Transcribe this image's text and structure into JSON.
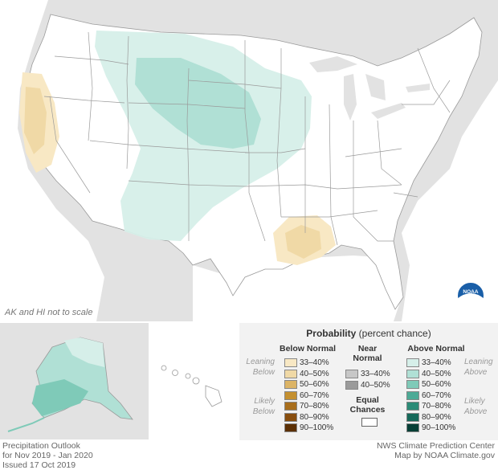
{
  "map": {
    "scale_note": "AK and HI not to scale",
    "logo_text": "NOAA"
  },
  "legend": {
    "title_bold": "Probability",
    "title_rest": " (percent chance)",
    "below_head": "Below Normal",
    "near_head_1": "Near",
    "near_head_2": "Normal",
    "above_head": "Above Normal",
    "leaning_left": [
      "Leaning",
      "Below"
    ],
    "likely_left": [
      "Likely",
      "Below"
    ],
    "leaning_right": [
      "Leaning",
      "Above"
    ],
    "likely_right": [
      "Likely",
      "Above"
    ],
    "equal_1": "Equal",
    "equal_2": "Chances",
    "below": [
      {
        "label": "33–40%",
        "color": "#f8e8c4"
      },
      {
        "label": "40–50%",
        "color": "#f0d9a6"
      },
      {
        "label": "50–60%",
        "color": "#dcb466"
      },
      {
        "label": "60–70%",
        "color": "#c49030"
      },
      {
        "label": "70–80%",
        "color": "#a86e1c"
      },
      {
        "label": "80–90%",
        "color": "#884e0f"
      },
      {
        "label": "90–100%",
        "color": "#5c3005"
      }
    ],
    "near": [
      {
        "label": "33–40%",
        "color": "#c7c7c7"
      },
      {
        "label": "40–50%",
        "color": "#9b9b9b"
      }
    ],
    "above": [
      {
        "label": "33–40%",
        "color": "#d6efe9"
      },
      {
        "label": "40–50%",
        "color": "#b0e0d5"
      },
      {
        "label": "50–60%",
        "color": "#7fcab8"
      },
      {
        "label": "60–70%",
        "color": "#4daa96"
      },
      {
        "label": "70–80%",
        "color": "#2b8b77"
      },
      {
        "label": "80–90%",
        "color": "#16695a"
      },
      {
        "label": "90–100%",
        "color": "#073f36"
      }
    ]
  },
  "footer": {
    "left": [
      "Precipitation Outlook",
      "for Nov 2019 - Jan 2020",
      "Issued 17 Oct 2019"
    ],
    "right": [
      "NWS Climate Prediction Center",
      "Map by NOAA Climate.gov"
    ]
  }
}
